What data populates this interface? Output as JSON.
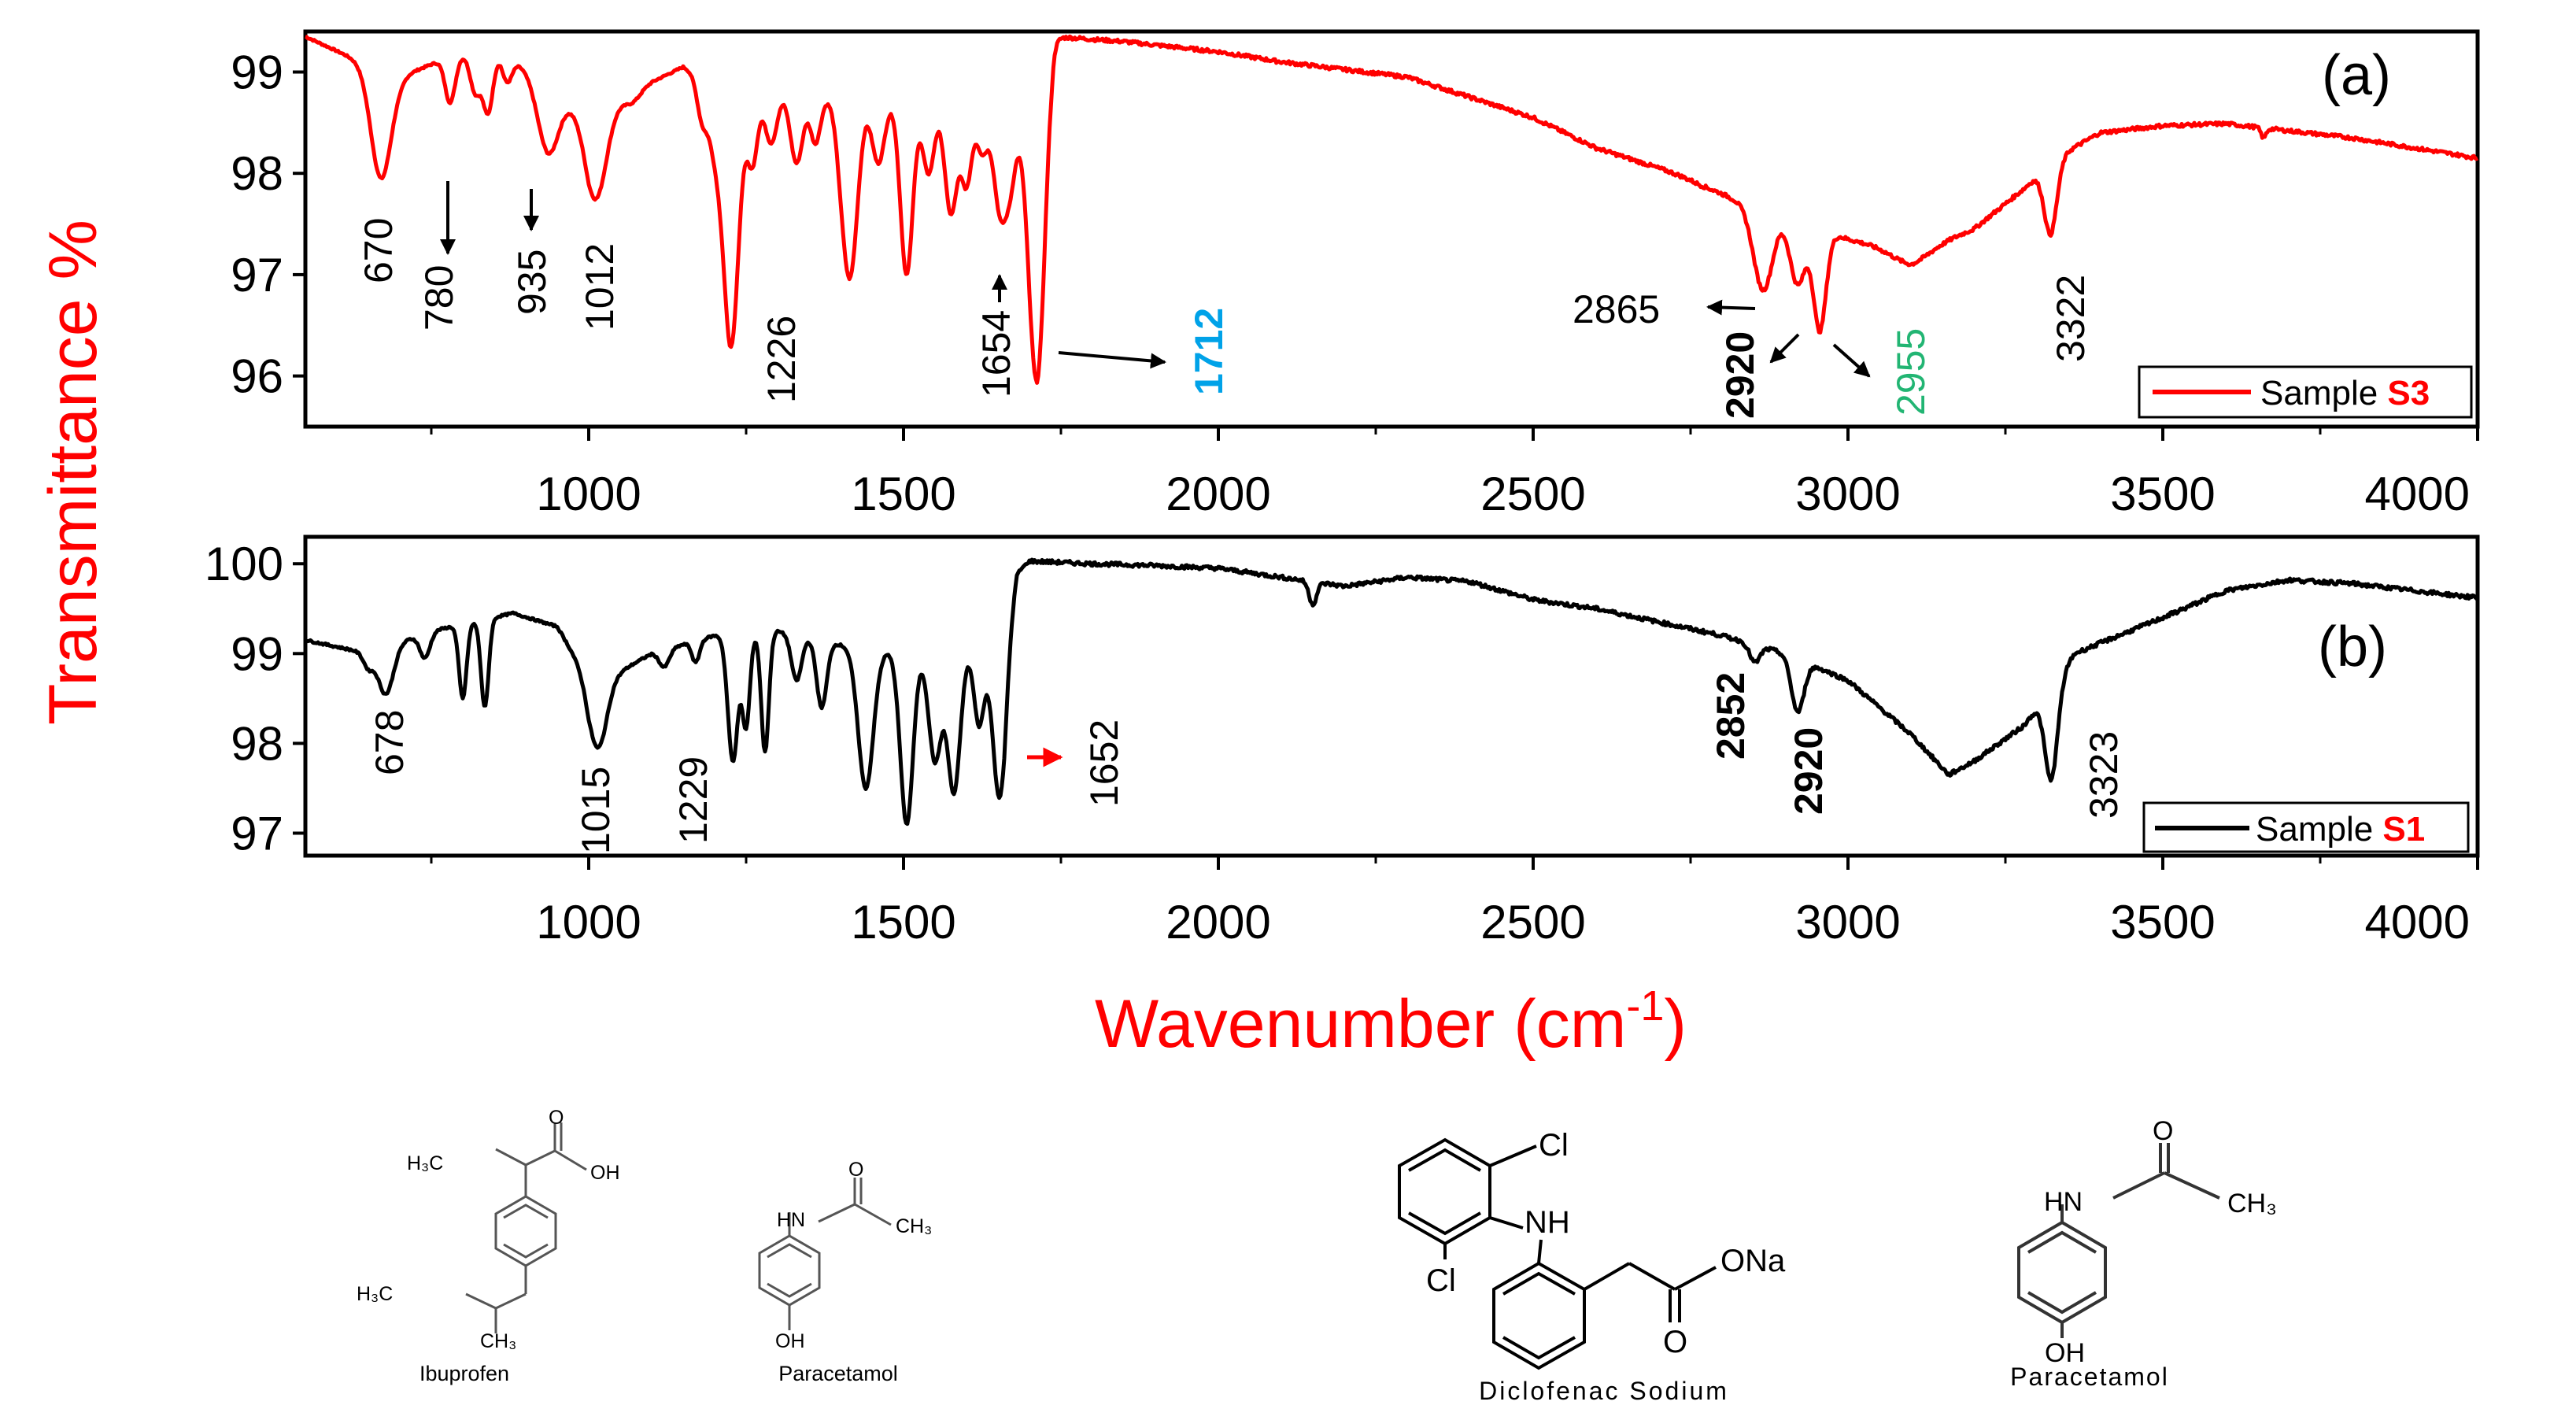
{
  "chart_data": [
    {
      "type": "line",
      "panel": "(a)",
      "xlim": [
        550,
        4000
      ],
      "ylim": [
        95.5,
        99.4
      ],
      "x_ticks": [
        1000,
        1500,
        2000,
        2500,
        3000,
        3500,
        4000
      ],
      "y_ticks": [
        96,
        97,
        98,
        99
      ],
      "series": [
        {
          "name": "Sample S3",
          "legend_prefix": "Sample",
          "legend_strong": "S3",
          "color": "#ff0000",
          "baseline": [
            [
              550,
              99.35
            ],
            [
              620,
              99.15
            ],
            [
              700,
              98.95
            ],
            [
              780,
              99.15
            ],
            [
              860,
              99.2
            ],
            [
              930,
              98.9
            ],
            [
              1000,
              98.5
            ],
            [
              1100,
              98.9
            ],
            [
              1150,
              99.05
            ],
            [
              1200,
              98.85
            ],
            [
              1250,
              98.75
            ],
            [
              1300,
              98.85
            ],
            [
              1400,
              98.7
            ],
            [
              1500,
              98.75
            ],
            [
              1550,
              98.85
            ],
            [
              1600,
              98.6
            ],
            [
              1650,
              98.5
            ],
            [
              1700,
              98.4
            ],
            [
              1720,
              98.7
            ],
            [
              1740,
              99.35
            ],
            [
              1850,
              99.3
            ],
            [
              2000,
              99.2
            ],
            [
              2100,
              99.1
            ],
            [
              2300,
              98.95
            ],
            [
              2500,
              98.55
            ],
            [
              2600,
              98.25
            ],
            [
              2750,
              97.95
            ],
            [
              2850,
              97.65
            ],
            [
              2880,
              97.6
            ],
            [
              3000,
              97.35
            ],
            [
              3100,
              97.2
            ],
            [
              3200,
              97.45
            ],
            [
              3280,
              97.85
            ],
            [
              3330,
              98.15
            ],
            [
              3400,
              98.4
            ],
            [
              3500,
              98.47
            ],
            [
              3600,
              98.49
            ],
            [
              3700,
              98.42
            ],
            [
              3800,
              98.35
            ],
            [
              4000,
              98.15
            ]
          ],
          "peaks": [
            [
              670,
              97.95,
              16
            ],
            [
              780,
              98.7,
              8
            ],
            [
              820,
              98.8,
              8
            ],
            [
              840,
              98.6,
              8
            ],
            [
              870,
              98.9,
              8
            ],
            [
              935,
              98.2,
              16
            ],
            [
              1012,
              97.75,
              16
            ],
            [
              1070,
              98.7,
              12
            ],
            [
              1180,
              98.55,
              8
            ],
            [
              1200,
              98.3,
              10
            ],
            [
              1226,
              96.3,
              12
            ],
            [
              1260,
              98.1,
              8
            ],
            [
              1290,
              98.3,
              10
            ],
            [
              1330,
              98.1,
              10
            ],
            [
              1360,
              98.3,
              8
            ],
            [
              1400,
              98.5,
              8
            ],
            [
              1415,
              97.0,
              12
            ],
            [
              1460,
              98.1,
              10
            ],
            [
              1505,
              97.0,
              10
            ],
            [
              1540,
              98.0,
              10
            ],
            [
              1575,
              97.6,
              10
            ],
            [
              1600,
              97.9,
              8
            ],
            [
              1625,
              98.2,
              8
            ],
            [
              1654,
              97.6,
              10
            ],
            [
              1670,
              98.0,
              8
            ],
            [
              1712,
              95.95,
              12
            ],
            [
              2760,
              97.9,
              20
            ],
            [
              2865,
              96.85,
              15
            ],
            [
              2920,
              96.9,
              12
            ],
            [
              2955,
              96.45,
              10
            ],
            [
              3100,
              97.1,
              30
            ],
            [
              3322,
              97.4,
              10
            ],
            [
              3660,
              98.35,
              4
            ]
          ],
          "annotations": [
            {
              "text": "670",
              "x": 670
            },
            {
              "text": "780",
              "x": 780
            },
            {
              "text": "935",
              "x": 935
            },
            {
              "text": "1012",
              "x": 1012
            },
            {
              "text": "1226",
              "x": 1226
            },
            {
              "text": "1654",
              "x": 1654
            },
            {
              "text": "1712",
              "x": 1712,
              "color": "#00a2e8"
            },
            {
              "text": "2865",
              "x": 2865
            },
            {
              "text": "2920",
              "x": 2920
            },
            {
              "text": "2955",
              "x": 2955,
              "color": "#22b573"
            },
            {
              "text": "3322",
              "x": 3322
            }
          ]
        }
      ]
    },
    {
      "type": "line",
      "panel": "(b)",
      "xlim": [
        550,
        4000
      ],
      "ylim": [
        96.75,
        100.3
      ],
      "x_ticks": [
        1000,
        1500,
        2000,
        2500,
        3000,
        3500,
        4000
      ],
      "y_ticks": [
        97,
        98,
        99,
        100
      ],
      "series": [
        {
          "name": "Sample S1",
          "legend_prefix": "Sample",
          "legend_strong": "S1",
          "color": "#000000",
          "baseline": [
            [
              550,
              99.15
            ],
            [
              650,
              99.0
            ],
            [
              750,
              99.25
            ],
            [
              880,
              99.45
            ],
            [
              950,
              99.3
            ],
            [
              1000,
              98.7
            ],
            [
              1050,
              98.8
            ],
            [
              1100,
              99.0
            ],
            [
              1200,
              99.2
            ],
            [
              1300,
              99.25
            ],
            [
              1400,
              99.1
            ],
            [
              1500,
              99.0
            ],
            [
              1600,
              99.05
            ],
            [
              1660,
              99.0
            ],
            [
              1680,
              99.9
            ],
            [
              1700,
              100.03
            ],
            [
              1800,
              100.0
            ],
            [
              1900,
              99.98
            ],
            [
              2000,
              99.95
            ],
            [
              2100,
              99.85
            ],
            [
              2200,
              99.75
            ],
            [
              2300,
              99.85
            ],
            [
              2400,
              99.8
            ],
            [
              2500,
              99.6
            ],
            [
              2600,
              99.5
            ],
            [
              2700,
              99.35
            ],
            [
              2800,
              99.2
            ],
            [
              2900,
              99.0
            ],
            [
              3000,
              98.7
            ],
            [
              3100,
              98.1
            ],
            [
              3160,
              97.65
            ],
            [
              3200,
              97.8
            ],
            [
              3280,
              98.2
            ],
            [
              3360,
              99.0
            ],
            [
              3500,
              99.4
            ],
            [
              3600,
              99.7
            ],
            [
              3700,
              99.82
            ],
            [
              3800,
              99.78
            ],
            [
              4000,
              99.62
            ]
          ],
          "peaks": [
            [
              650,
              98.85,
              8
            ],
            [
              678,
              98.55,
              12
            ],
            [
              740,
              98.95,
              8
            ],
            [
              800,
              98.5,
              6
            ],
            [
              835,
              98.4,
              6
            ],
            [
              1015,
              97.95,
              14
            ],
            [
              1120,
              98.85,
              8
            ],
            [
              1170,
              98.9,
              6
            ],
            [
              1229,
              97.8,
              8
            ],
            [
              1250,
              98.2,
              6
            ],
            [
              1280,
              97.9,
              6
            ],
            [
              1330,
              98.7,
              8
            ],
            [
              1370,
              98.4,
              8
            ],
            [
              1440,
              97.5,
              12
            ],
            [
              1505,
              97.1,
              10
            ],
            [
              1550,
              97.8,
              10
            ],
            [
              1580,
              97.45,
              10
            ],
            [
              1620,
              98.2,
              8
            ],
            [
              1652,
              97.4,
              10
            ],
            [
              2150,
              99.55,
              6
            ],
            [
              2852,
              98.9,
              8
            ],
            [
              2920,
              98.35,
              10
            ],
            [
              3323,
              97.6,
              10
            ]
          ],
          "annotations": [
            {
              "text": "678",
              "x": 678
            },
            {
              "text": "1015",
              "x": 1015
            },
            {
              "text": "1229",
              "x": 1229
            },
            {
              "text": "1652",
              "x": 1652
            },
            {
              "text": "2852",
              "x": 2852
            },
            {
              "text": "2920",
              "x": 2920
            },
            {
              "text": "3323",
              "x": 3323
            }
          ]
        }
      ]
    }
  ],
  "axes": {
    "ylabel": "Transmittance %",
    "xlabel_main": "Wavenumber (cm",
    "xlabel_sup": "-1",
    "xlabel_close": ")",
    "label_color": "#ff0000"
  },
  "molecules": {
    "ibuprofen": {
      "name": "Ibuprofen",
      "h3c_top": "H₃C",
      "o": "O",
      "oh": "OH",
      "h3c_bottom": "H₃C",
      "ch3": "CH₃"
    },
    "paracetamol_small": {
      "name": "Paracetamol",
      "o": "O",
      "hn": "HN",
      "ch3": "CH₃",
      "oh": "OH"
    },
    "diclofenac": {
      "name": "Diclofenac Sodium",
      "cl_top": "Cl",
      "nh": "NH",
      "cl_left": "Cl",
      "ona": "ONa",
      "o": "O"
    },
    "paracetamol_large": {
      "name": "Paracetamol",
      "o": "O",
      "hn": "HN",
      "ch3": "CH₃",
      "oh": "OH"
    }
  }
}
